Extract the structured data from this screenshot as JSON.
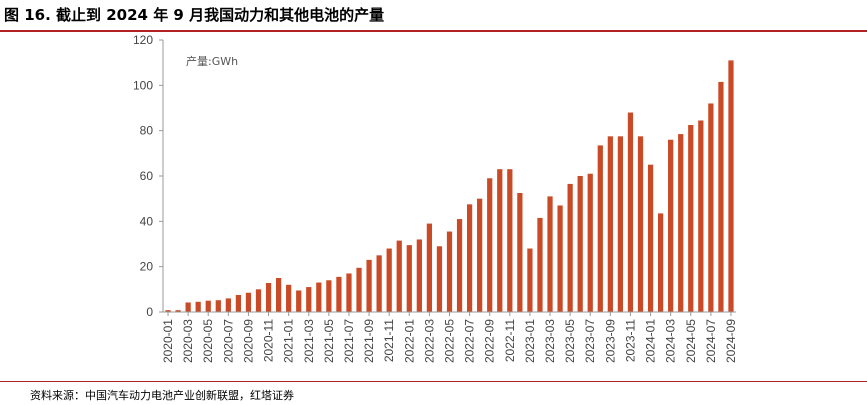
{
  "title": "图 16. 截止到 2024 年 9 月我国动力和其他电池的产量",
  "source": "资料来源：中国汽车动力电池产业创新联盟，红塔证券",
  "chart_data": {
    "type": "bar",
    "unit_label": "产量:GWh",
    "ylim": [
      0,
      120
    ],
    "yticks": [
      0,
      20,
      40,
      60,
      80,
      100,
      120
    ],
    "bar_color": "#c84a26",
    "grid": false,
    "categories": [
      "2020-01",
      "2020-02",
      "2020-03",
      "2020-04",
      "2020-05",
      "2020-06",
      "2020-07",
      "2020-08",
      "2020-09",
      "2020-10",
      "2020-11",
      "2020-12",
      "2021-01",
      "2021-02",
      "2021-03",
      "2021-04",
      "2021-05",
      "2021-06",
      "2021-07",
      "2021-08",
      "2021-09",
      "2021-10",
      "2021-11",
      "2021-12",
      "2022-01",
      "2022-02",
      "2022-03",
      "2022-04",
      "2022-05",
      "2022-06",
      "2022-07",
      "2022-08",
      "2022-09",
      "2022-10",
      "2022-11",
      "2022-12",
      "2023-01",
      "2023-02",
      "2023-03",
      "2023-04",
      "2023-05",
      "2023-06",
      "2023-07",
      "2023-08",
      "2023-09",
      "2023-10",
      "2023-11",
      "2023-12",
      "2024-01",
      "2024-02",
      "2024-03",
      "2024-04",
      "2024-05",
      "2024-06",
      "2024-07",
      "2024-08",
      "2024-09"
    ],
    "values": [
      0.8,
      0.8,
      4.2,
      4.5,
      5,
      5.2,
      6,
      7.5,
      8.5,
      10,
      12.8,
      15,
      12,
      9.5,
      11,
      13,
      14,
      15.5,
      17,
      19.5,
      23,
      25,
      28,
      31.5,
      29.5,
      32,
      39,
      29,
      35.5,
      41,
      47.5,
      50,
      59,
      63,
      63,
      52.5,
      28,
      41.5,
      51,
      47,
      56.5,
      60,
      61,
      73.5,
      77.5,
      77.5,
      88,
      77.5,
      65,
      43.5,
      76,
      78.5,
      82.5,
      84.5,
      92,
      101.5,
      111
    ],
    "label_every": 2
  }
}
